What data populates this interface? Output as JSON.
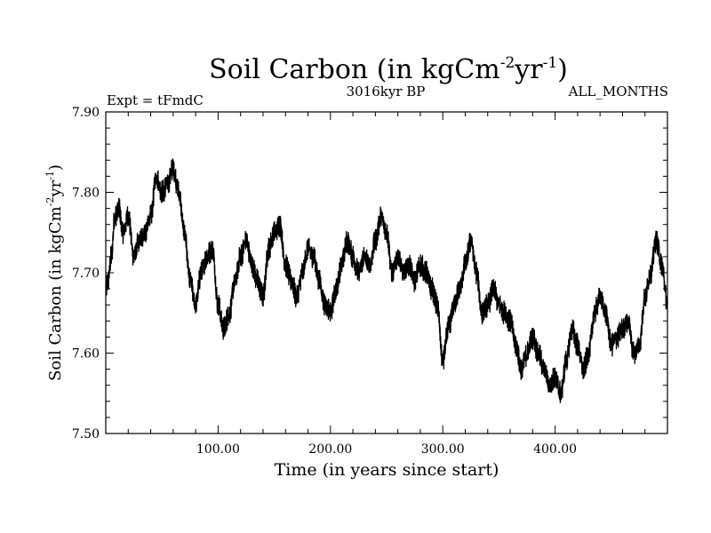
{
  "chart_data": {
    "type": "line",
    "title": "Soil Carbon (in kgCm",
    "title_sup1": "-2",
    "title_mid": "yr",
    "title_sup2": "-1",
    "title_end": ")",
    "subtitle_left": "Expt = tFmdC",
    "subtitle_center": "3016kyr BP",
    "subtitle_right": "ALL_MONTHS",
    "xlabel": "Time (in years since start)",
    "ylabel": "Soil Carbon (in kgCm",
    "ylabel_sup1": "-2",
    "ylabel_mid": "yr",
    "ylabel_sup2": "-1",
    "ylabel_end": ")",
    "xlim": [
      0,
      500
    ],
    "ylim": [
      7.5,
      7.9
    ],
    "x_ticks": [
      100,
      200,
      300,
      400
    ],
    "x_tick_labels": [
      "100.00",
      "200.00",
      "300.00",
      "400.00"
    ],
    "y_ticks": [
      7.5,
      7.6,
      7.7,
      7.8,
      7.9
    ],
    "y_tick_labels": [
      "7.50",
      "7.60",
      "7.70",
      "7.80",
      "7.90"
    ],
    "series": [
      {
        "name": "Soil Carbon",
        "color": "#000000",
        "noise_amplitude": 0.012,
        "x": [
          0,
          2,
          5,
          8,
          12,
          15,
          20,
          25,
          30,
          35,
          40,
          45,
          50,
          55,
          60,
          65,
          70,
          75,
          80,
          85,
          90,
          95,
          100,
          105,
          110,
          115,
          120,
          125,
          130,
          135,
          140,
          145,
          150,
          155,
          160,
          165,
          170,
          175,
          180,
          185,
          190,
          195,
          200,
          205,
          210,
          215,
          220,
          225,
          230,
          235,
          240,
          245,
          250,
          255,
          260,
          265,
          270,
          275,
          280,
          285,
          290,
          295,
          300,
          305,
          310,
          315,
          320,
          325,
          330,
          335,
          340,
          345,
          350,
          355,
          360,
          365,
          370,
          375,
          380,
          385,
          390,
          395,
          400,
          405,
          410,
          415,
          420,
          425,
          430,
          435,
          440,
          445,
          450,
          455,
          460,
          465,
          470,
          475,
          480,
          485,
          490,
          495,
          500
        ],
        "y": [
          7.68,
          7.69,
          7.72,
          7.77,
          7.78,
          7.75,
          7.77,
          7.72,
          7.74,
          7.75,
          7.77,
          7.82,
          7.8,
          7.81,
          7.83,
          7.8,
          7.75,
          7.69,
          7.66,
          7.7,
          7.72,
          7.73,
          7.66,
          7.63,
          7.65,
          7.69,
          7.72,
          7.74,
          7.71,
          7.69,
          7.67,
          7.73,
          7.75,
          7.76,
          7.71,
          7.69,
          7.67,
          7.7,
          7.73,
          7.72,
          7.69,
          7.66,
          7.65,
          7.68,
          7.71,
          7.74,
          7.72,
          7.7,
          7.72,
          7.71,
          7.74,
          7.77,
          7.75,
          7.7,
          7.72,
          7.7,
          7.71,
          7.69,
          7.71,
          7.7,
          7.68,
          7.66,
          7.59,
          7.63,
          7.66,
          7.68,
          7.71,
          7.74,
          7.7,
          7.65,
          7.66,
          7.68,
          7.66,
          7.65,
          7.64,
          7.61,
          7.58,
          7.6,
          7.62,
          7.6,
          7.58,
          7.56,
          7.57,
          7.55,
          7.59,
          7.63,
          7.61,
          7.58,
          7.6,
          7.65,
          7.67,
          7.65,
          7.61,
          7.62,
          7.63,
          7.64,
          7.6,
          7.61,
          7.67,
          7.7,
          7.74,
          7.71,
          7.66
        ]
      }
    ]
  }
}
